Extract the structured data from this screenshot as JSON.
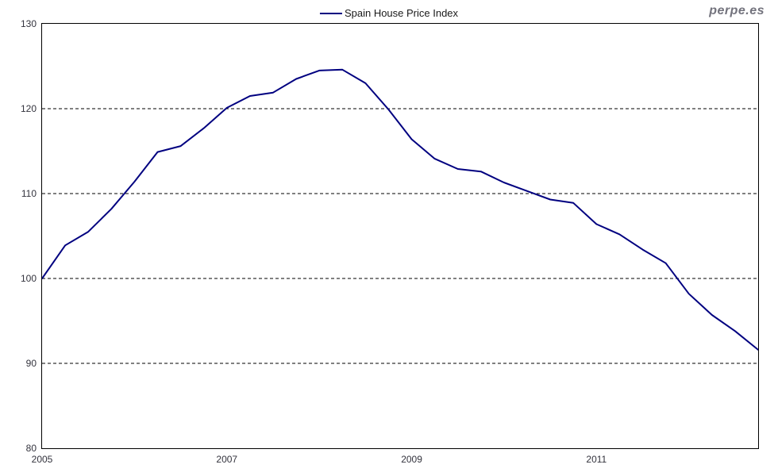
{
  "watermark": "perpe.es",
  "legend": {
    "label": "Spain House Price Index"
  },
  "colors": {
    "line": "#000080",
    "axis_text": "#33333d",
    "watermark_text": "#73737d",
    "border": "#000000",
    "background": "#ffffff"
  },
  "chart_data": {
    "type": "line",
    "title": "Spain House Price Index",
    "xlabel": "",
    "ylabel": "",
    "legend_position": "top-center",
    "grid": "horizontal dashed",
    "ylim": [
      80,
      130
    ],
    "y_ticks": [
      80,
      90,
      100,
      110,
      120,
      130
    ],
    "y_gridlines": [
      90,
      100,
      110,
      120
    ],
    "x_ticks": [
      2005,
      2007,
      2009,
      2011
    ],
    "x_start_year": 2005,
    "x": [
      "2005 Q1",
      "2005 Q2",
      "2005 Q3",
      "2005 Q4",
      "2006 Q1",
      "2006 Q2",
      "2006 Q3",
      "2006 Q4",
      "2007 Q1",
      "2007 Q2",
      "2007 Q3",
      "2007 Q4",
      "2008 Q1",
      "2008 Q2",
      "2008 Q3",
      "2008 Q4",
      "2009 Q1",
      "2009 Q2",
      "2009 Q3",
      "2009 Q4",
      "2010 Q1",
      "2010 Q2",
      "2010 Q3",
      "2010 Q4",
      "2011 Q1",
      "2011 Q2",
      "2011 Q3",
      "2011 Q4",
      "2012 Q1",
      "2012 Q2",
      "2012 Q3",
      "2012 Q4"
    ],
    "series": [
      {
        "name": "Spain House Price Index",
        "color": "#000080",
        "values": [
          100.0,
          103.9,
          105.5,
          108.2,
          111.4,
          114.9,
          115.6,
          117.7,
          120.1,
          121.5,
          121.9,
          123.5,
          124.5,
          124.6,
          123.0,
          119.9,
          116.4,
          114.1,
          112.9,
          112.6,
          111.3,
          110.3,
          109.3,
          108.9,
          106.4,
          105.2,
          103.4,
          101.8,
          98.2,
          95.7,
          93.8,
          91.6
        ]
      }
    ]
  }
}
